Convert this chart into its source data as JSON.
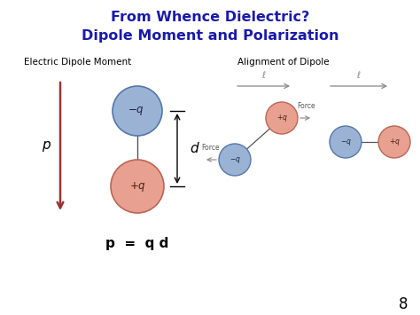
{
  "title_line1": "From Whence Dielectric?",
  "title_line2": "Dipole Moment and Polarization",
  "title_color": "#1a1aaa",
  "title_fontsize": 11.5,
  "label_left": "Electric Dipole Moment",
  "label_right": "Alignment of Dipole",
  "label_fontsize": 7.5,
  "neg_charge_color": "#9ab3d5",
  "pos_charge_color": "#e8a090",
  "neg_edge_color": "#5577aa",
  "pos_edge_color": "#bb6655",
  "formula": "p  =  q d",
  "formula_fontsize": 11,
  "page_number": "8",
  "bg_color": "#ffffff",
  "p_arrow_color": "#993333",
  "line_color": "#555555"
}
